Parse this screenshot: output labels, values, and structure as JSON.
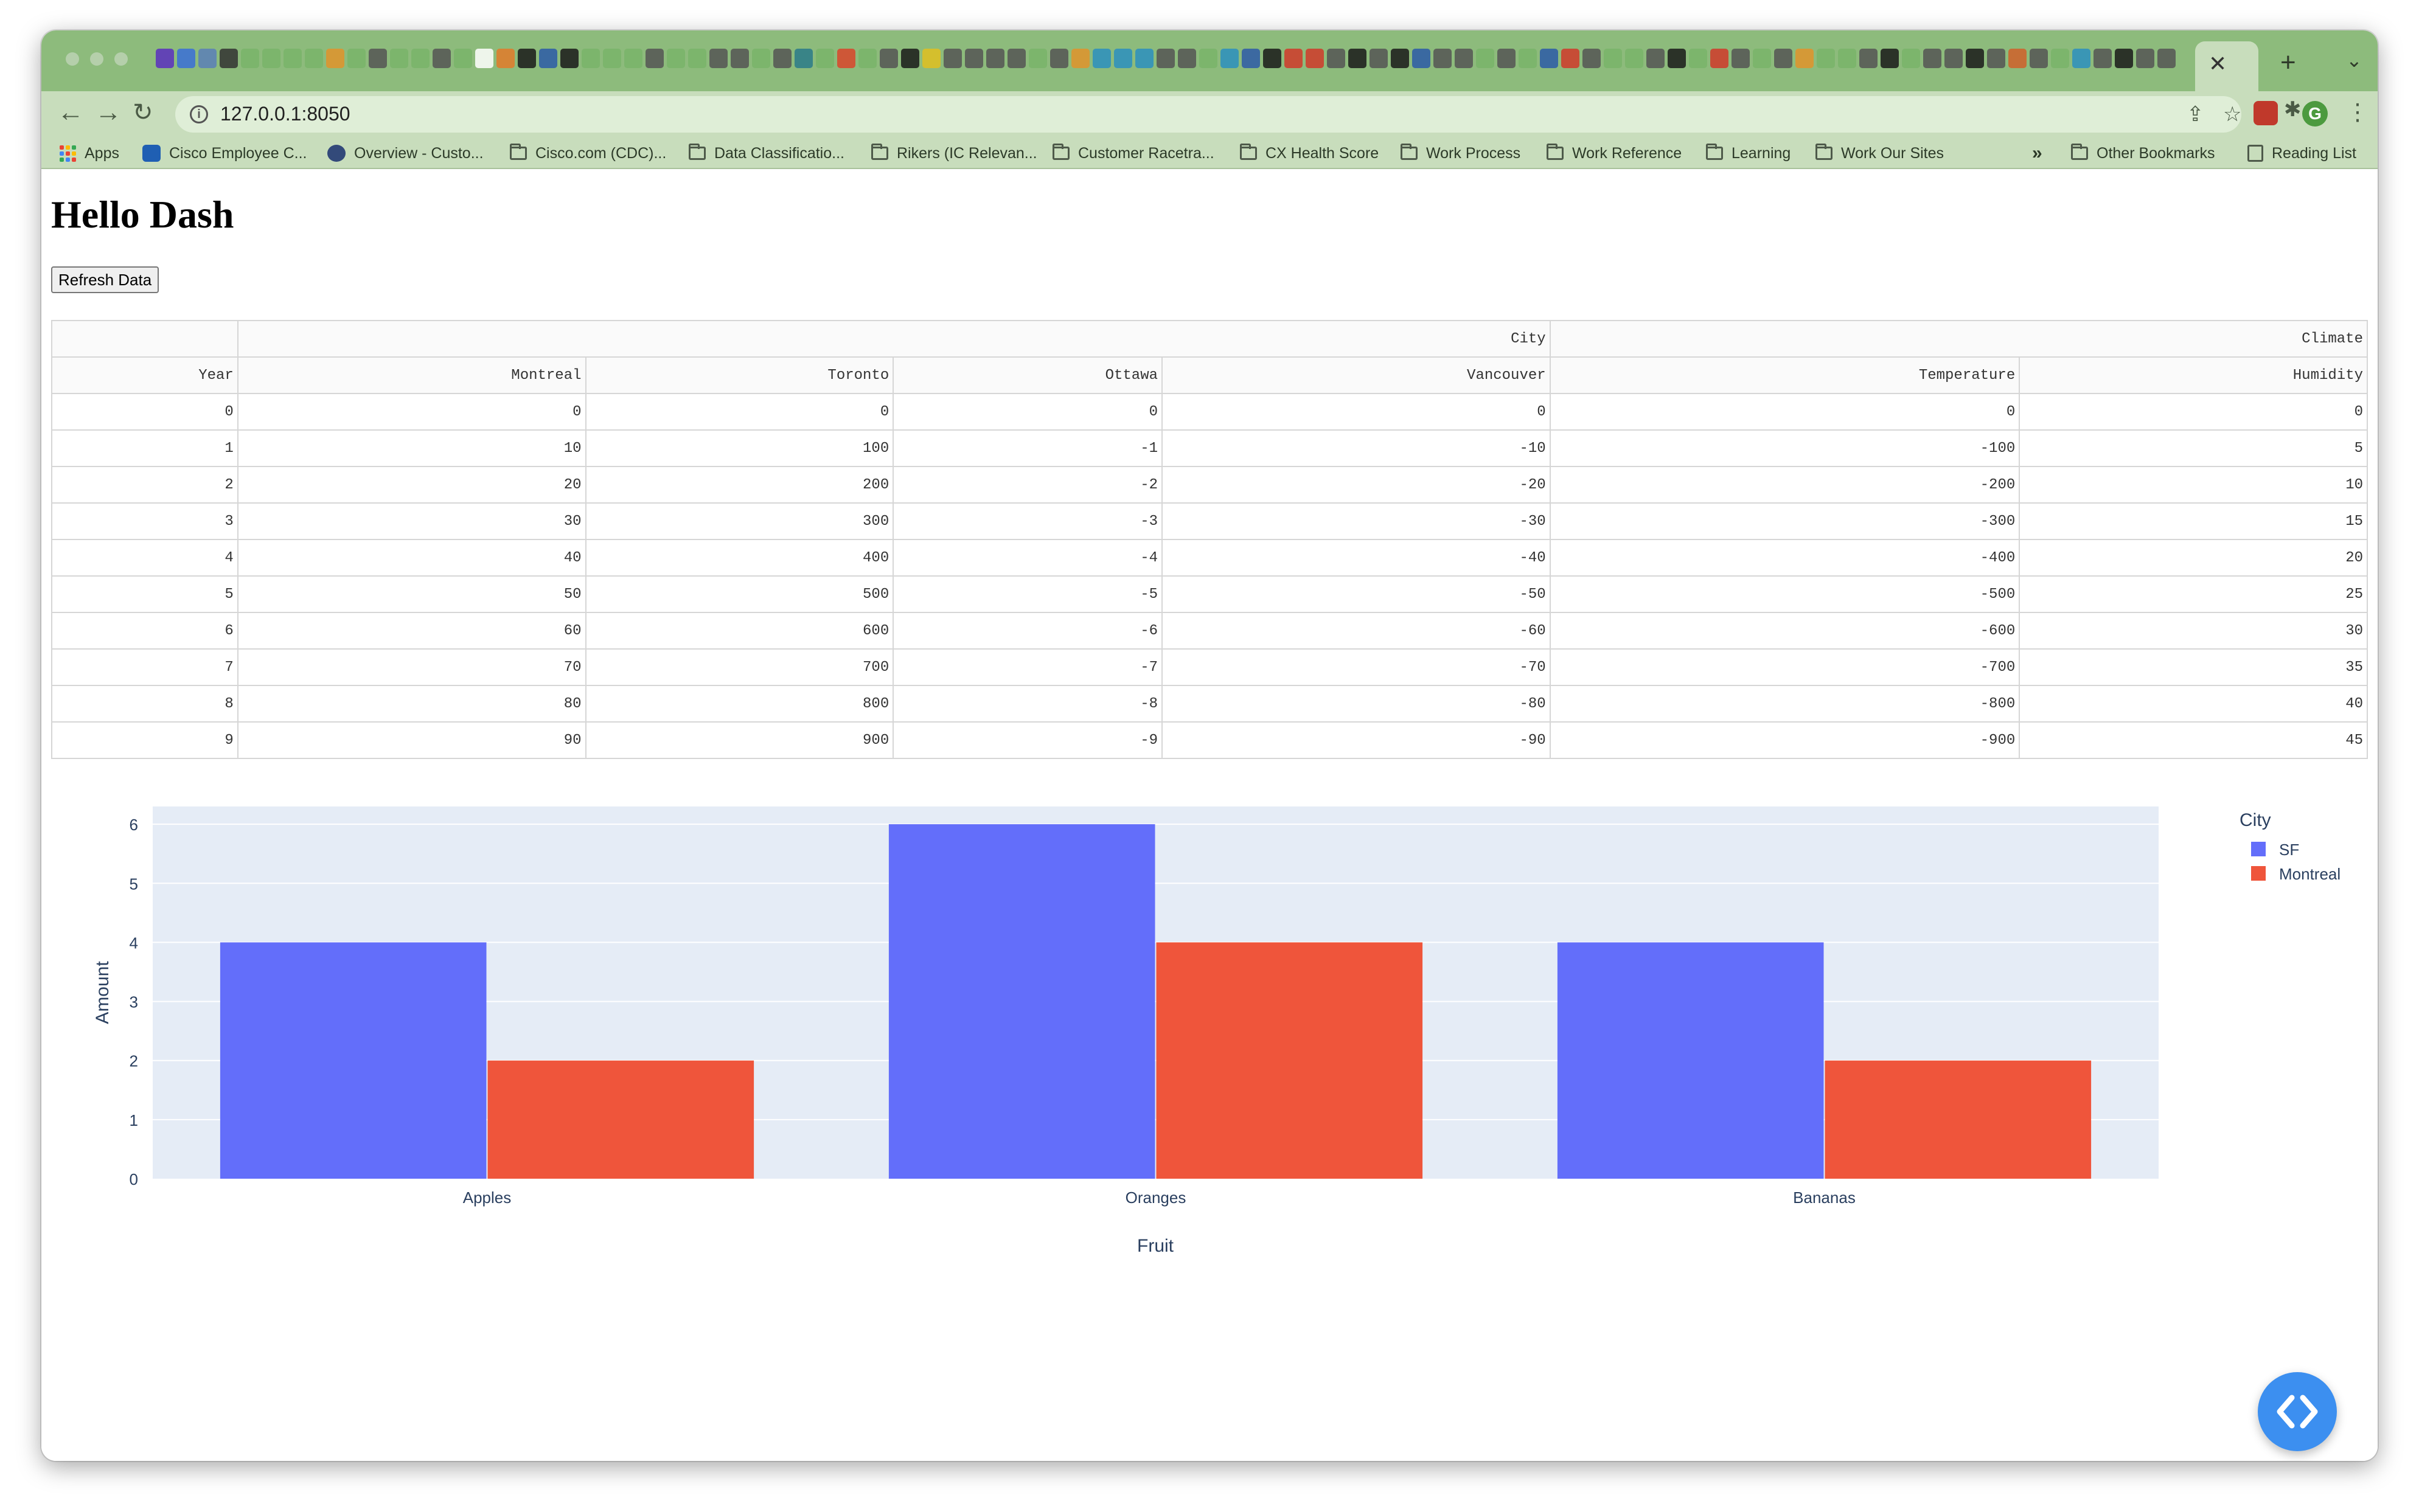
{
  "browser": {
    "url": "127.0.0.1:8050",
    "tab_close_glyph": "✕",
    "new_tab_glyph": "+",
    "profile_initial": "G",
    "bookmarks": [
      {
        "label": "Apps",
        "icon": "apps-grid-icon"
      },
      {
        "label": "Cisco Employee C...",
        "icon": "cisco-icon"
      },
      {
        "label": "Overview - Custo...",
        "icon": "overview-icon"
      },
      {
        "label": "Cisco.com (CDC)...",
        "icon": "folder-icon"
      },
      {
        "label": "Data Classificatio...",
        "icon": "folder-icon"
      },
      {
        "label": "Rikers (IC Relevan...",
        "icon": "folder-icon"
      },
      {
        "label": "Customer Racetra...",
        "icon": "folder-icon"
      },
      {
        "label": "CX Health Score",
        "icon": "folder-icon"
      },
      {
        "label": "Work Process",
        "icon": "folder-icon"
      },
      {
        "label": "Work Reference",
        "icon": "folder-icon"
      },
      {
        "label": "Learning",
        "icon": "folder-icon"
      },
      {
        "label": "Work Our Sites",
        "icon": "folder-icon"
      }
    ],
    "bookmarks_overflow": "»",
    "other_bookmarks": "Other Bookmarks",
    "reading_list": "Reading List"
  },
  "page": {
    "title": "Hello Dash",
    "refresh_button": "Refresh Data"
  },
  "table": {
    "group_headers": [
      "",
      "City",
      "Climate"
    ],
    "columns": [
      "Year",
      "Montreal",
      "Toronto",
      "Ottawa",
      "Vancouver",
      "Temperature",
      "Humidity"
    ],
    "rows": [
      [
        "0",
        "0",
        "0",
        "0",
        "0",
        "0",
        "0"
      ],
      [
        "1",
        "10",
        "100",
        "-1",
        "-10",
        "-100",
        "5"
      ],
      [
        "2",
        "20",
        "200",
        "-2",
        "-20",
        "-200",
        "10"
      ],
      [
        "3",
        "30",
        "300",
        "-3",
        "-30",
        "-300",
        "15"
      ],
      [
        "4",
        "40",
        "400",
        "-4",
        "-40",
        "-400",
        "20"
      ],
      [
        "5",
        "50",
        "500",
        "-5",
        "-50",
        "-500",
        "25"
      ],
      [
        "6",
        "60",
        "600",
        "-6",
        "-60",
        "-600",
        "30"
      ],
      [
        "7",
        "70",
        "700",
        "-7",
        "-70",
        "-700",
        "35"
      ],
      [
        "8",
        "80",
        "800",
        "-8",
        "-80",
        "-800",
        "40"
      ],
      [
        "9",
        "90",
        "900",
        "-9",
        "-90",
        "-900",
        "45"
      ]
    ]
  },
  "chart_data": {
    "type": "bar",
    "categories": [
      "Apples",
      "Oranges",
      "Bananas"
    ],
    "series": [
      {
        "name": "SF",
        "values": [
          4,
          6,
          4
        ],
        "color": "#636efa"
      },
      {
        "name": "Montreal",
        "values": [
          2,
          4,
          2
        ],
        "color": "#ef553b"
      }
    ],
    "xlabel": "Fruit",
    "ylabel": "Amount",
    "ylim": [
      0,
      6.3
    ],
    "yticks": [
      0,
      1,
      2,
      3,
      4,
      5,
      6
    ],
    "legend_title": "City",
    "legend_position": "top-right",
    "grid": true,
    "plot_bgcolor": "#e5ecf6"
  }
}
